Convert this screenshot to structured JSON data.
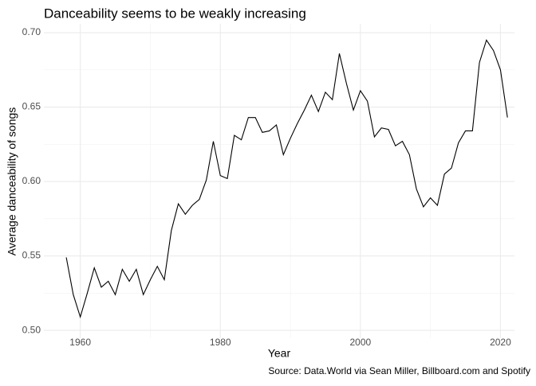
{
  "chart_data": {
    "type": "line",
    "title": "Danceability seems to be weakly increasing",
    "xlabel": "Year",
    "ylabel": "Average danceability of songs",
    "caption": "Source: Data.World via Sean Miller, Billboard.com and Spotify",
    "x": [
      1958,
      1959,
      1960,
      1961,
      1962,
      1963,
      1964,
      1965,
      1966,
      1967,
      1968,
      1969,
      1970,
      1971,
      1972,
      1973,
      1974,
      1975,
      1976,
      1977,
      1978,
      1979,
      1980,
      1981,
      1982,
      1983,
      1984,
      1985,
      1986,
      1987,
      1988,
      1989,
      1990,
      1991,
      1992,
      1993,
      1994,
      1995,
      1996,
      1997,
      1998,
      1999,
      2000,
      2001,
      2002,
      2003,
      2004,
      2005,
      2006,
      2007,
      2008,
      2009,
      2010,
      2011,
      2012,
      2013,
      2014,
      2015,
      2016,
      2017,
      2018,
      2019,
      2020,
      2021
    ],
    "series": [
      {
        "color": "#000000",
        "values": [
          0.549,
          0.524,
          0.509,
          0.525,
          0.542,
          0.529,
          0.533,
          0.524,
          0.541,
          0.533,
          0.541,
          0.524,
          0.534,
          0.543,
          0.534,
          0.567,
          0.585,
          0.578,
          0.584,
          0.588,
          0.601,
          0.627,
          0.604,
          0.602,
          0.631,
          0.628,
          0.643,
          0.643,
          0.633,
          0.634,
          0.638,
          0.618,
          0.629,
          0.639,
          0.648,
          0.658,
          0.647,
          0.66,
          0.655,
          0.686,
          0.666,
          0.648,
          0.661,
          0.654,
          0.63,
          0.636,
          0.635,
          0.624,
          0.627,
          0.618,
          0.595,
          0.583,
          0.589,
          0.584,
          0.605,
          0.609,
          0.626,
          0.634,
          0.634,
          0.68,
          0.695,
          0.688,
          0.675,
          0.643
        ]
      }
    ],
    "xlim": [
      1954.8,
      2022.0
    ],
    "ylim": [
      0.4947,
      0.7059
    ],
    "xticks": [
      1960,
      1980,
      2000,
      2020
    ],
    "yticks": [
      {
        "value": 0.5,
        "label": "0.50"
      },
      {
        "value": 0.55,
        "label": "0.55"
      },
      {
        "value": 0.6,
        "label": "0.60"
      },
      {
        "value": 0.65,
        "label": "0.65"
      },
      {
        "value": 0.7,
        "label": "0.70"
      }
    ],
    "x_minor_grid": [
      1970,
      1990,
      2010
    ],
    "y_minor_grid": [
      0.525,
      0.575,
      0.625,
      0.675
    ],
    "grid": true
  }
}
